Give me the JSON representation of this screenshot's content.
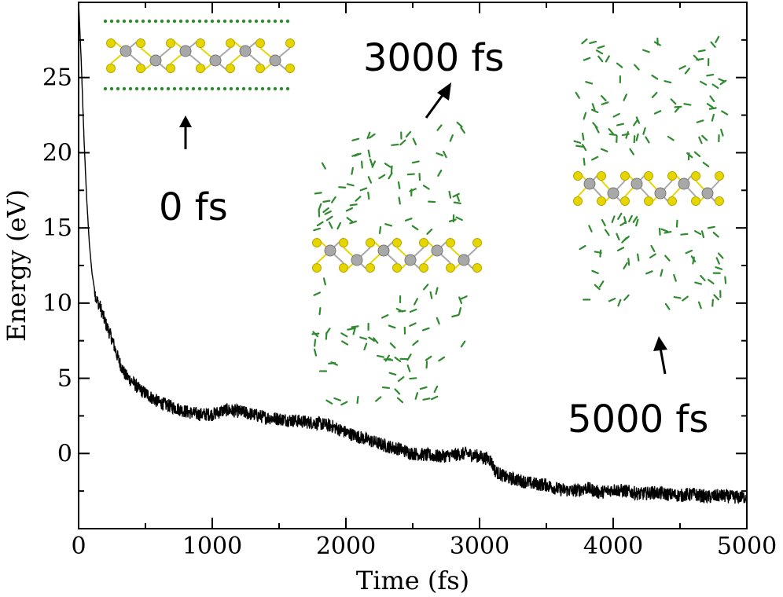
{
  "chart_data": {
    "type": "line",
    "xlabel": "Time (fs)",
    "ylabel": "Energy (eV)",
    "xlim": [
      0,
      5000
    ],
    "ylim": [
      -5,
      30
    ],
    "x_ticks": [
      0,
      1000,
      2000,
      3000,
      4000,
      5000
    ],
    "y_ticks": [
      0,
      5,
      10,
      15,
      20,
      25
    ],
    "grid": false,
    "series": [
      {
        "name": "Energy",
        "color": "#000000",
        "x": [
          0,
          20,
          40,
          60,
          80,
          100,
          130,
          160,
          200,
          250,
          300,
          350,
          400,
          450,
          500,
          600,
          700,
          800,
          900,
          1000,
          1100,
          1200,
          1300,
          1400,
          1500,
          1600,
          1700,
          1800,
          1900,
          2000,
          2100,
          2200,
          2300,
          2400,
          2500,
          2600,
          2700,
          2800,
          2900,
          3000,
          3080,
          3120,
          3200,
          3300,
          3400,
          3500,
          3600,
          3700,
          3800,
          3900,
          4000,
          4100,
          4200,
          4300,
          4400,
          4500,
          4600,
          4700,
          4800,
          4900,
          5000
        ],
        "values": [
          30,
          26,
          21,
          17,
          14,
          12,
          10.3,
          9.8,
          8.7,
          7.6,
          6.2,
          5.2,
          4.8,
          4.3,
          4.0,
          3.4,
          3.1,
          2.8,
          2.6,
          2.6,
          2.9,
          2.8,
          2.6,
          2.4,
          2.3,
          2.2,
          2.1,
          2.0,
          1.8,
          1.4,
          1.1,
          0.8,
          0.5,
          0.3,
          0.0,
          -0.1,
          -0.2,
          -0.1,
          0.0,
          -0.2,
          -0.4,
          -1.2,
          -1.6,
          -1.8,
          -2.0,
          -2.1,
          -2.4,
          -2.5,
          -2.3,
          -2.6,
          -2.4,
          -2.5,
          -2.7,
          -2.6,
          -2.7,
          -2.8,
          -2.7,
          -2.9,
          -2.8,
          -2.9,
          -2.9
        ]
      }
    ],
    "annotations": [
      "0 fs",
      "3000 fs",
      "5000 fs"
    ]
  },
  "colors": {
    "line": "#000000",
    "sulfur": "#e6d600",
    "metal": "#a8a8a8",
    "molecule": "#2f8a2f"
  }
}
